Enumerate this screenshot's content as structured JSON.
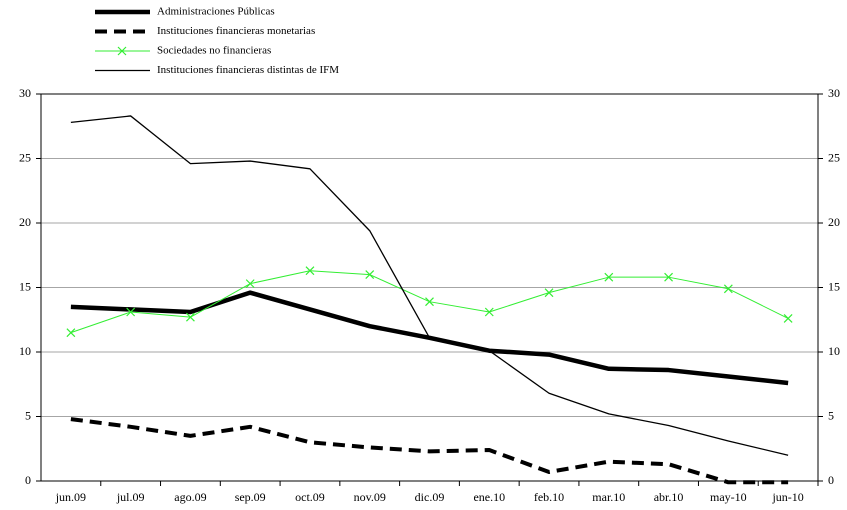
{
  "chart_data": {
    "type": "line",
    "categories": [
      "jun.09",
      "jul.09",
      "ago.09",
      "sep.09",
      "oct.09",
      "nov.09",
      "dic.09",
      "ene.10",
      "feb.10",
      "mar.10",
      "abr.10",
      "may-10",
      "jun-10"
    ],
    "series": [
      {
        "name": "Administraciones Públicas",
        "color": "#000000",
        "values": [
          13.5,
          13.3,
          13.1,
          14.6,
          13.3,
          12.0,
          11.1,
          10.1,
          9.8,
          8.7,
          8.6,
          8.1,
          7.6
        ]
      },
      {
        "name": "Instituciones financieras monetarias",
        "color": "#000000",
        "values": [
          4.8,
          4.2,
          3.5,
          4.2,
          3.0,
          2.6,
          2.3,
          2.4,
          0.7,
          1.5,
          1.3,
          -0.1,
          -0.1
        ]
      },
      {
        "name": "Sociedades no financieras",
        "color": "#33ee33",
        "values": [
          11.5,
          13.1,
          12.7,
          15.3,
          16.3,
          16.0,
          13.9,
          13.1,
          14.6,
          15.8,
          15.8,
          14.9,
          12.6
        ]
      },
      {
        "name": "Instituciones financieras distintas de IFM",
        "color": "#000000",
        "values": [
          27.8,
          28.3,
          24.6,
          24.8,
          24.2,
          19.4,
          11.1,
          10.1,
          6.8,
          5.2,
          4.3,
          3.1,
          2.0
        ],
        "axis": "y2"
      }
    ],
    "ylim": [
      0,
      30
    ],
    "yticks": [
      0,
      5,
      10,
      15,
      20,
      25,
      30
    ],
    "y2lim": [
      0,
      30
    ],
    "y2ticks": [
      0,
      5,
      10,
      15,
      20,
      25,
      30
    ],
    "grid": true
  }
}
